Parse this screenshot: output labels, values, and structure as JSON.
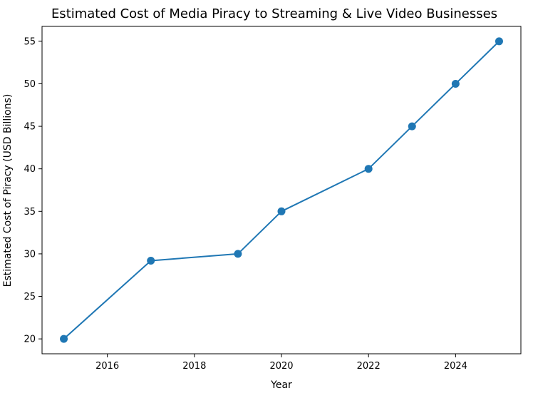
{
  "chart_data": {
    "type": "line",
    "title": "Estimated Cost of Media Piracy to Streaming & Live Video Businesses",
    "xlabel": "Year",
    "ylabel": "Estimated Cost of Piracy (USD Billions)",
    "xlim": [
      2014.5,
      2025.5
    ],
    "ylim": [
      18.25,
      56.75
    ],
    "x_ticks": [
      2016,
      2018,
      2020,
      2022,
      2024
    ],
    "y_ticks": [
      20,
      25,
      30,
      35,
      40,
      45,
      50,
      55
    ],
    "grid": false,
    "legend": "none",
    "series": [
      {
        "x": [
          2015,
          2017,
          2019,
          2020,
          2022,
          2023,
          2024,
          2025
        ],
        "y": [
          20,
          29.2,
          30,
          35,
          40,
          45,
          50,
          55
        ],
        "color": "#1f77b4",
        "marker": "circle"
      }
    ]
  }
}
